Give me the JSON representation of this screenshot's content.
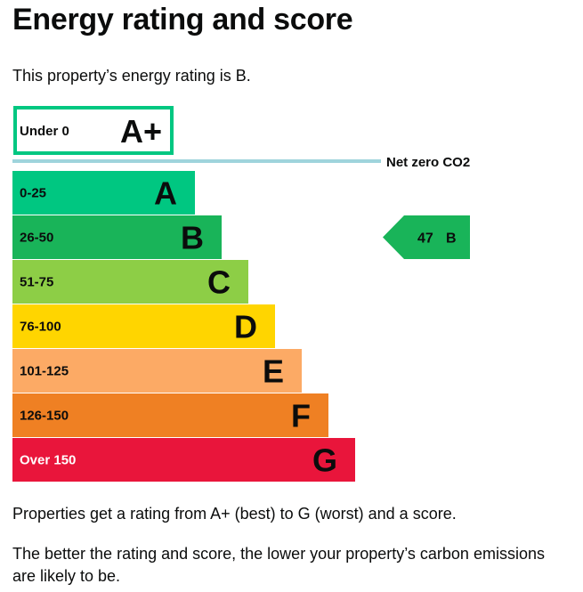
{
  "page": {
    "title": "Energy rating and score",
    "intro": "This property’s energy rating is B.",
    "footer_1": "Properties get a rating from A+ (best) to G (worst) and a score.",
    "footer_2": "The better the rating and score, the lower your property’s carbon emissions are likely to be."
  },
  "chart_data": {
    "type": "bar",
    "title": "",
    "net_zero": {
      "band": "A+",
      "range": "Under 0",
      "label": "Net zero CO2",
      "color": "#00c781",
      "line_color": "#9fd4dc"
    },
    "bands": [
      {
        "rating": "A",
        "range": "0-25",
        "color": "#00c781",
        "order": 1
      },
      {
        "rating": "B",
        "range": "26-50",
        "color": "#19b459",
        "order": 2
      },
      {
        "rating": "C",
        "range": "51-75",
        "color": "#8dce46",
        "order": 3
      },
      {
        "rating": "D",
        "range": "76-100",
        "color": "#ffd500",
        "order": 4
      },
      {
        "rating": "E",
        "range": "101-125",
        "color": "#fcaa65",
        "order": 5
      },
      {
        "rating": "F",
        "range": "126-150",
        "color": "#ef8023",
        "order": 6
      },
      {
        "rating": "G",
        "range": "Over 150",
        "color": "#e9153b",
        "order": 7
      }
    ],
    "current": {
      "score": "47",
      "rating": "B",
      "color": "#19b459"
    }
  }
}
